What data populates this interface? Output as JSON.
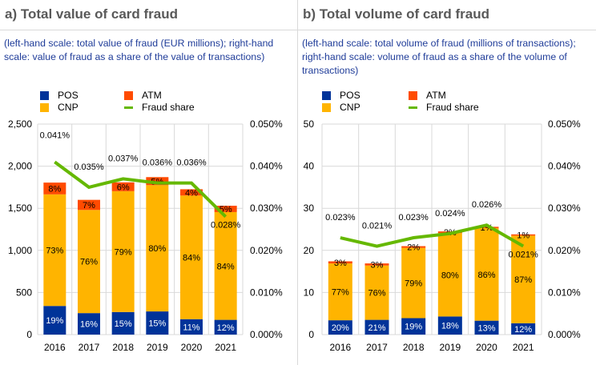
{
  "colors": {
    "pos": "#003399",
    "cnp": "#ffb400",
    "atm": "#ff4b00",
    "fraud_share": "#65b800",
    "grid": "#d9d9d9",
    "title": "#595959",
    "subtitle": "#1f3c99"
  },
  "legend": {
    "pos": "POS",
    "atm": "ATM",
    "cnp": "CNP",
    "fraud_share": "Fraud share"
  },
  "chart_data": [
    {
      "type": "bar",
      "stacked": true,
      "title": "a) Total value of card fraud",
      "subtitle": "(left-hand scale: total value of fraud (EUR millions); right-hand scale: value of fraud as a share of the value of transactions)",
      "categories": [
        "2016",
        "2017",
        "2018",
        "2019",
        "2020",
        "2021"
      ],
      "ylim": [
        0,
        2500
      ],
      "yticks": [
        "0",
        "500",
        "1,000",
        "1,500",
        "2,000",
        "2,500"
      ],
      "y2lim": [
        0,
        0.05
      ],
      "y2ticks": [
        "0.000%",
        "0.010%",
        "0.020%",
        "0.030%",
        "0.040%",
        "0.050%"
      ],
      "series": [
        {
          "name": "POS",
          "key": "pos",
          "values": [
            340,
            255,
            268,
            275,
            183,
            175
          ],
          "labels": [
            "19%",
            "16%",
            "15%",
            "15%",
            "11%",
            "12%"
          ]
        },
        {
          "name": "CNP",
          "key": "cnp",
          "values": [
            1325,
            1225,
            1435,
            1500,
            1468,
            1280
          ],
          "labels": [
            "73%",
            "76%",
            "79%",
            "80%",
            "84%",
            "84%"
          ]
        },
        {
          "name": "ATM",
          "key": "atm",
          "values": [
            140,
            120,
            105,
            95,
            75,
            75
          ],
          "labels": [
            "8%",
            "7%",
            "6%",
            "5%",
            "4%",
            "5%"
          ]
        }
      ],
      "line": {
        "name": "Fraud share",
        "values": [
          0.041,
          0.035,
          0.037,
          0.036,
          0.036,
          0.028
        ],
        "labels": [
          "0.041%",
          "0.035%",
          "0.037%",
          "0.036%",
          "0.036%",
          "0.028%"
        ]
      },
      "grid": true,
      "legend_position": "top-left"
    },
    {
      "type": "bar",
      "stacked": true,
      "title": "b) Total volume of card fraud",
      "subtitle": "(left-hand scale: total volume of fraud (millions of transactions); right-hand scale: volume of fraud as a share of the volume of transactions)",
      "categories": [
        "2016",
        "2017",
        "2018",
        "2019",
        "2020",
        "2021"
      ],
      "ylim": [
        0,
        50
      ],
      "yticks": [
        "0",
        "10",
        "20",
        "30",
        "40",
        "50"
      ],
      "y2lim": [
        0,
        0.05
      ],
      "y2ticks": [
        "0.000%",
        "0.010%",
        "0.020%",
        "0.030%",
        "0.040%",
        "0.050%"
      ],
      "series": [
        {
          "name": "POS",
          "key": "pos",
          "values": [
            3.4,
            3.5,
            3.9,
            4.3,
            3.3,
            2.7
          ],
          "labels": [
            "20%",
            "21%",
            "19%",
            "18%",
            "13%",
            "12%"
          ]
        },
        {
          "name": "CNP",
          "key": "cnp",
          "values": [
            13.5,
            12.9,
            16.7,
            19.8,
            22.0,
            20.8
          ],
          "labels": [
            "77%",
            "76%",
            "79%",
            "80%",
            "86%",
            "87%"
          ]
        },
        {
          "name": "ATM",
          "key": "atm",
          "values": [
            0.5,
            0.5,
            0.4,
            0.4,
            0.3,
            0.3
          ],
          "labels": [
            "3%",
            "3%",
            "2%",
            "2%",
            "1%",
            "1%"
          ]
        }
      ],
      "line": {
        "name": "Fraud share",
        "values": [
          0.023,
          0.021,
          0.023,
          0.024,
          0.026,
          0.021
        ],
        "labels": [
          "0.023%",
          "0.021%",
          "0.023%",
          "0.024%",
          "0.026%",
          "0.021%"
        ]
      },
      "grid": true,
      "legend_position": "top-left"
    }
  ]
}
